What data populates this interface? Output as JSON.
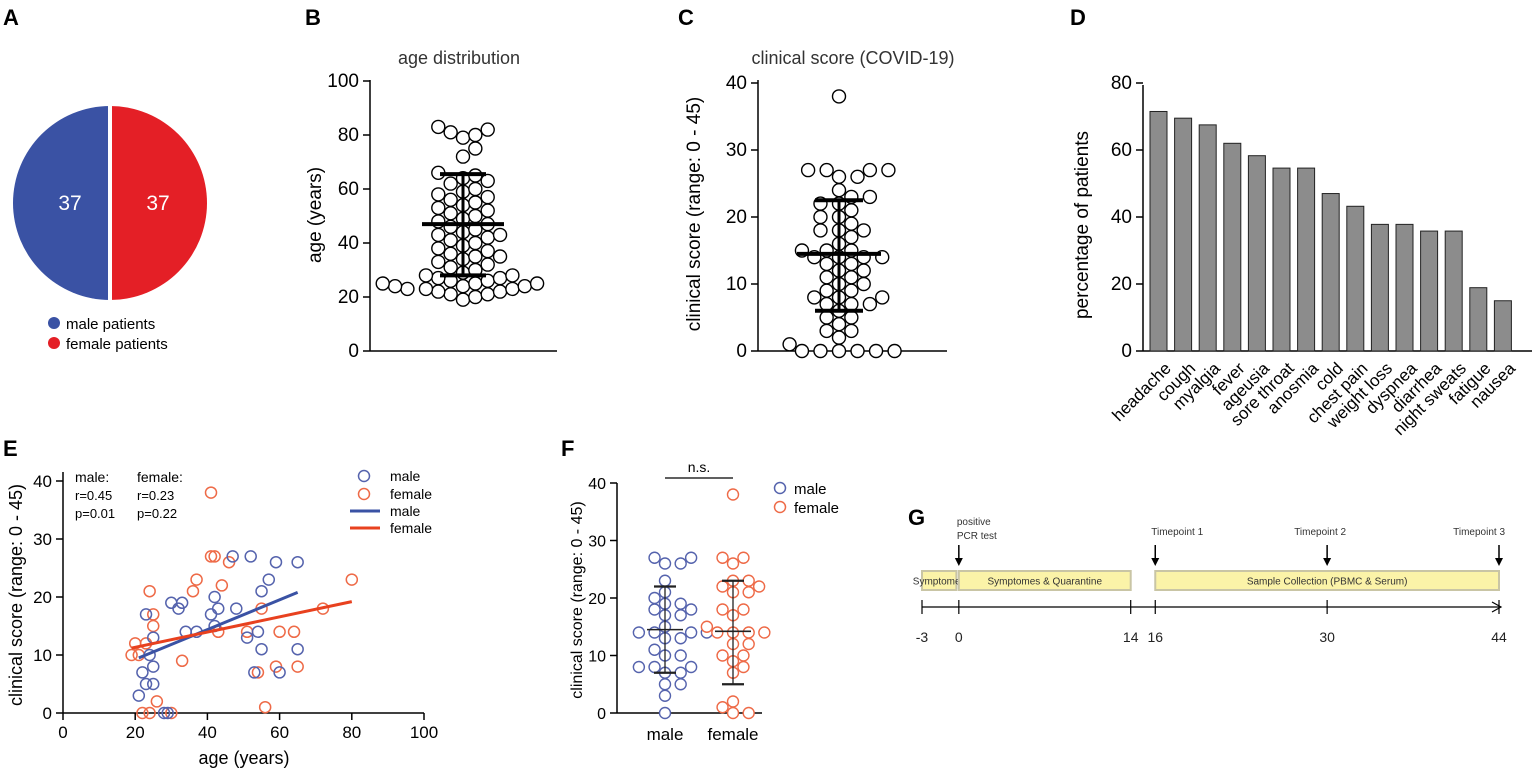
{
  "panel_labels": {
    "a": "A",
    "b": "B",
    "c": "C",
    "d": "D",
    "e": "E",
    "f": "F",
    "g": "G"
  },
  "colors": {
    "male": "#3a52a4",
    "female": "#e41f26",
    "male_open": "#5563ad",
    "female_open": "#ee6a47",
    "bar": "#8c8c8c",
    "timeline_box": "#fbf3a8",
    "timeline_box_stroke": "#c9c5a5"
  },
  "chart_data": [
    {
      "id": "A",
      "type": "pie",
      "slices": [
        {
          "name": "male patients",
          "value": 37,
          "label": "37"
        },
        {
          "name": "female patients",
          "value": 37,
          "label": "37"
        }
      ],
      "legend": [
        "male patients",
        "female patients"
      ]
    },
    {
      "id": "B",
      "type": "scatter",
      "title": "age distribution",
      "ylabel": "age (years)",
      "ylim": [
        0,
        100
      ],
      "yticks": [
        0,
        20,
        40,
        60,
        80,
        100
      ],
      "mean": 47,
      "sd_low": 28,
      "sd_high": 65.5,
      "values": [
        19,
        20,
        21,
        21,
        22,
        22,
        23,
        23,
        23,
        24,
        24,
        24,
        25,
        25,
        25,
        26,
        26,
        27,
        27,
        28,
        28,
        29,
        30,
        31,
        32,
        33,
        34,
        35,
        35,
        36,
        37,
        38,
        39,
        40,
        41,
        42,
        43,
        43,
        44,
        45,
        46,
        47,
        48,
        49,
        50,
        51,
        52,
        53,
        54,
        55,
        56,
        57,
        58,
        59,
        60,
        62,
        63,
        64,
        65,
        66,
        72,
        75,
        79,
        80,
        81,
        82,
        83
      ]
    },
    {
      "id": "C",
      "type": "scatter",
      "title": "clinical score (COVID-19)",
      "ylabel": "clinical score (range: 0 - 45)",
      "ylim": [
        0,
        40
      ],
      "yticks": [
        0,
        10,
        20,
        30,
        40
      ],
      "mean": 14.5,
      "sd_low": 6,
      "sd_high": 22.5,
      "values": [
        0,
        0,
        0,
        0,
        0,
        0,
        1,
        2,
        3,
        3,
        4,
        5,
        5,
        6,
        7,
        7,
        7,
        8,
        8,
        8,
        9,
        9,
        10,
        10,
        11,
        11,
        12,
        12,
        13,
        13,
        14,
        14,
        14,
        14,
        15,
        15,
        15,
        16,
        17,
        18,
        18,
        18,
        19,
        20,
        20,
        21,
        22,
        22,
        23,
        23,
        24,
        26,
        26,
        27,
        27,
        27,
        27,
        38
      ]
    },
    {
      "id": "D",
      "type": "bar",
      "ylabel": "percentage of patients",
      "ylim": [
        0,
        80
      ],
      "yticks": [
        0,
        20,
        40,
        60,
        80
      ],
      "categories": [
        "headache",
        "cough",
        "myalgia",
        "fever",
        "ageusia",
        "sore throat",
        "anosmia",
        "cold",
        "chest pain",
        "weight loss",
        "dyspnea",
        "diarrhea",
        "night sweats",
        "fatigue",
        "nausea"
      ],
      "values": [
        71.5,
        69.5,
        67.5,
        62,
        58.3,
        54.6,
        54.6,
        47,
        43.2,
        37.8,
        37.8,
        35.8,
        35.8,
        18.9,
        15
      ]
    },
    {
      "id": "E",
      "type": "scatter",
      "xlabel": "age (years)",
      "ylabel": "clinical score (range: 0 - 45)",
      "xlim": [
        0,
        100
      ],
      "xticks": [
        0,
        20,
        40,
        60,
        80,
        100
      ],
      "ylim": [
        0,
        40
      ],
      "yticks": [
        0,
        10,
        20,
        30,
        40
      ],
      "stats": {
        "male_head": "male:",
        "male_r": "r=0.45",
        "male_p": "p=0.01",
        "female_head": "female:",
        "female_r": "r=0.23",
        "female_p": "p=0.22"
      },
      "legend": [
        "male",
        "female",
        "male",
        "female"
      ],
      "male_points": [
        [
          21,
          3
        ],
        [
          22,
          7
        ],
        [
          23,
          17
        ],
        [
          23,
          5
        ],
        [
          24,
          10
        ],
        [
          25,
          13
        ],
        [
          25,
          8
        ],
        [
          25,
          5
        ],
        [
          28,
          0
        ],
        [
          29,
          0
        ],
        [
          30,
          19
        ],
        [
          32,
          18
        ],
        [
          33,
          19
        ],
        [
          34,
          14
        ],
        [
          37,
          14
        ],
        [
          41,
          17
        ],
        [
          42,
          20
        ],
        [
          42,
          15
        ],
        [
          43,
          18
        ],
        [
          47,
          27
        ],
        [
          48,
          18
        ],
        [
          51,
          13
        ],
        [
          52,
          27
        ],
        [
          53,
          7
        ],
        [
          54,
          14
        ],
        [
          55,
          11
        ],
        [
          55,
          21
        ],
        [
          57,
          23
        ],
        [
          59,
          26
        ],
        [
          60,
          7
        ],
        [
          65,
          26
        ],
        [
          65,
          11
        ]
      ],
      "female_points": [
        [
          19,
          10
        ],
        [
          20,
          12
        ],
        [
          21,
          10
        ],
        [
          22,
          0
        ],
        [
          23,
          12
        ],
        [
          24,
          0
        ],
        [
          24,
          21
        ],
        [
          25,
          17
        ],
        [
          25,
          15
        ],
        [
          26,
          2
        ],
        [
          30,
          0
        ],
        [
          33,
          9
        ],
        [
          36,
          21
        ],
        [
          37,
          23
        ],
        [
          41,
          38
        ],
        [
          41,
          27
        ],
        [
          42,
          27
        ],
        [
          43,
          14
        ],
        [
          44,
          22
        ],
        [
          46,
          26
        ],
        [
          51,
          14
        ],
        [
          54,
          7
        ],
        [
          55,
          18
        ],
        [
          56,
          1
        ],
        [
          59,
          8
        ],
        [
          60,
          14
        ],
        [
          64,
          14
        ],
        [
          65,
          8
        ],
        [
          72,
          18
        ],
        [
          80,
          23
        ]
      ],
      "male_fit": {
        "x": [
          21,
          65
        ],
        "y": [
          9.5,
          20.8
        ]
      },
      "female_fit": {
        "x": [
          19,
          80
        ],
        "y": [
          11.2,
          19.2
        ]
      }
    },
    {
      "id": "F",
      "type": "scatter",
      "ylabel": "clinical score (range: 0 - 45)",
      "ylim": [
        0,
        40
      ],
      "yticks": [
        0,
        10,
        20,
        30,
        40
      ],
      "categories": [
        "male",
        "female"
      ],
      "annotation": "n.s.",
      "legend": [
        "male",
        "female"
      ],
      "male": {
        "mean": 14.5,
        "sd_low": 7,
        "sd_high": 22,
        "values": [
          0,
          3,
          5,
          5,
          7,
          7,
          8,
          8,
          8,
          10,
          10,
          11,
          13,
          13,
          14,
          14,
          14,
          14,
          15,
          17,
          17,
          18,
          18,
          19,
          19,
          20,
          21,
          23,
          26,
          26,
          27,
          27
        ]
      },
      "female": {
        "mean": 14.2,
        "sd_low": 5,
        "sd_high": 23,
        "values": [
          0,
          0,
          1,
          2,
          7,
          8,
          9,
          10,
          10,
          12,
          12,
          14,
          14,
          14,
          14,
          15,
          17,
          18,
          18,
          21,
          21,
          22,
          22,
          23,
          23,
          26,
          27,
          27,
          38
        ]
      }
    }
  ],
  "timeline": {
    "axis_ticks": [
      {
        "day": -3,
        "label": "-3"
      },
      {
        "day": 0,
        "label": "0"
      },
      {
        "day": 14,
        "label": "14"
      },
      {
        "day": 16,
        "label": "16"
      },
      {
        "day": 30,
        "label": "30"
      },
      {
        "day": 44,
        "label": "44"
      }
    ],
    "boxes": [
      {
        "label": "Symptomes",
        "from": -3,
        "to": -0.2
      },
      {
        "label": "Symptomes & Quarantine",
        "from": 0,
        "to": 14
      },
      {
        "label": "Sample Collection (PBMC & Serum)",
        "from": 16,
        "to": 44
      }
    ],
    "markers": [
      {
        "day": 0,
        "line1": "positive",
        "line2": "PCR test"
      },
      {
        "day": 16,
        "line1": "Timepoint 1",
        "line2": ""
      },
      {
        "day": 30,
        "line1": "Timepoint 2",
        "line2": ""
      },
      {
        "day": 44,
        "line1": "Timepoint 3",
        "line2": ""
      }
    ]
  }
}
